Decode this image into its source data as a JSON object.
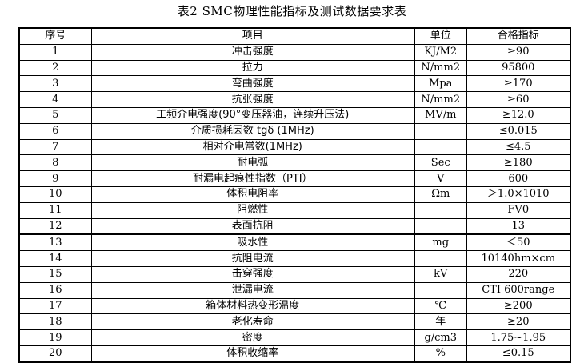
{
  "title": "表2  SMC物理性能指标及测试数据要求表",
  "headers": [
    "序号",
    "项目",
    "单位",
    "合格指标"
  ],
  "rows": [
    {
      "no": "1",
      "item": "冲击强度",
      "unit": "KJ/M2",
      "spec": "≥90"
    },
    {
      "no": "2",
      "item": "拉力",
      "unit": "N/mm2",
      "spec": "95800"
    },
    {
      "no": "3",
      "item": "弯曲强度",
      "unit": "Mpa",
      "spec": "≥170"
    },
    {
      "no": "4",
      "item": "抗张强度",
      "unit": "N/mm2",
      "spec": "≥60"
    },
    {
      "no": "5",
      "item": "工频介电强度(90°变压器油，连续升压法)",
      "unit": "MV/m",
      "spec": "≥12.0"
    },
    {
      "no": "6",
      "item": "介质损耗因数 tgδ (1MHz)",
      "unit": "",
      "spec": "≤0.015"
    },
    {
      "no": "7",
      "item": "相对介电常数(1MHz)",
      "unit": "",
      "spec": "≤4.5"
    },
    {
      "no": "8",
      "item": "耐电弧",
      "unit": "Sec",
      "spec": "≥180"
    },
    {
      "no": "9",
      "item": "耐漏电起痕性指数（PTI）",
      "unit": "V",
      "spec": "600"
    },
    {
      "no": "10",
      "item": "体积电阻率",
      "unit": "Ωm",
      "spec": "＞1.0×1010"
    },
    {
      "no": "11",
      "item": "阻燃性",
      "unit": "",
      "spec": "FV0"
    },
    {
      "no": "12",
      "item": "表面抗阻",
      "unit": "",
      "spec": "13"
    },
    {
      "no": "13",
      "item": "吸水性",
      "unit": "mg",
      "spec": "＜50"
    },
    {
      "no": "14",
      "item": "抗阻电流",
      "unit": "",
      "spec": "10140hm×cm"
    },
    {
      "no": "15",
      "item": "击穿强度",
      "unit": "kV",
      "spec": "220"
    },
    {
      "no": "16",
      "item": "泄漏电流",
      "unit": "",
      "spec": "CTI 600range"
    },
    {
      "no": "17",
      "item": "箱体材料热变形温度",
      "unit": "℃",
      "spec": "≥200"
    },
    {
      "no": "18",
      "item": "老化寿命",
      "unit": "年",
      "spec": "≥20"
    },
    {
      "no": "19",
      "item": "密度",
      "unit": "g/cm3",
      "spec": "1.75~1.95"
    },
    {
      "no": "20",
      "item": "体积收缩率",
      "unit": "%",
      "spec": "≤0.15"
    }
  ]
}
